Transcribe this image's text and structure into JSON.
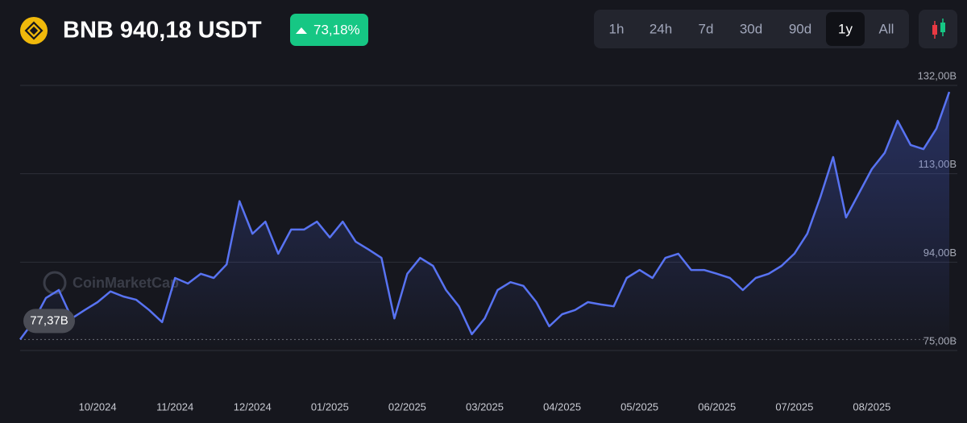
{
  "chart_data": {
    "type": "line",
    "title": "BNB 940,18 USDT",
    "change": "73,18%",
    "ranges": [
      "1h",
      "24h",
      "7d",
      "30d",
      "90d",
      "1y",
      "All"
    ],
    "active_range": "1y",
    "watermark": "CoinMarketCap",
    "start_label": "77,37B",
    "color": "#5873f2",
    "categories": [
      null,
      null,
      null,
      null,
      null,
      null,
      "10/2024",
      null,
      null,
      null,
      null,
      null,
      "11/2024",
      null,
      null,
      null,
      null,
      null,
      "12/2024",
      null,
      null,
      null,
      null,
      null,
      "01/2025",
      null,
      null,
      null,
      null,
      null,
      "02/2025",
      null,
      null,
      null,
      null,
      null,
      "03/2025",
      null,
      null,
      null,
      null,
      null,
      "04/2025",
      null,
      null,
      null,
      null,
      null,
      "05/2025",
      null,
      null,
      null,
      null,
      null,
      "06/2025",
      null,
      null,
      null,
      null,
      null,
      "07/2025",
      null,
      null,
      null,
      null,
      null,
      "08/2025",
      null,
      null,
      null,
      null,
      null,
      null
    ],
    "values": [
      77.37,
      81.1,
      86.3,
      88.0,
      81.9,
      83.7,
      85.4,
      87.7,
      86.6,
      85.9,
      83.7,
      81.1,
      90.6,
      89.4,
      91.5,
      90.6,
      93.5,
      107.1,
      100.1,
      102.7,
      95.8,
      101.0,
      101.0,
      102.7,
      99.3,
      102.7,
      98.4,
      96.7,
      94.9,
      81.9,
      91.5,
      94.9,
      93.2,
      88.0,
      84.5,
      78.5,
      81.9,
      88.0,
      89.7,
      88.9,
      85.4,
      80.2,
      82.8,
      83.7,
      85.4,
      84.9,
      84.5,
      90.6,
      92.3,
      90.6,
      94.9,
      95.8,
      92.3,
      92.3,
      91.5,
      90.6,
      88.0,
      90.6,
      91.5,
      93.2,
      95.8,
      100.1,
      107.9,
      116.6,
      103.6,
      108.8,
      114.0,
      117.5,
      124.4,
      119.2,
      118.3,
      122.7,
      130.6
    ],
    "ylim": [
      75,
      132
    ],
    "yticks": [
      {
        "value": 75,
        "label": "75,00B"
      },
      {
        "value": 94,
        "label": "94,00B"
      },
      {
        "value": 113,
        "label": "113,00B"
      },
      {
        "value": 132,
        "label": "132,00B"
      }
    ],
    "grid": true
  }
}
